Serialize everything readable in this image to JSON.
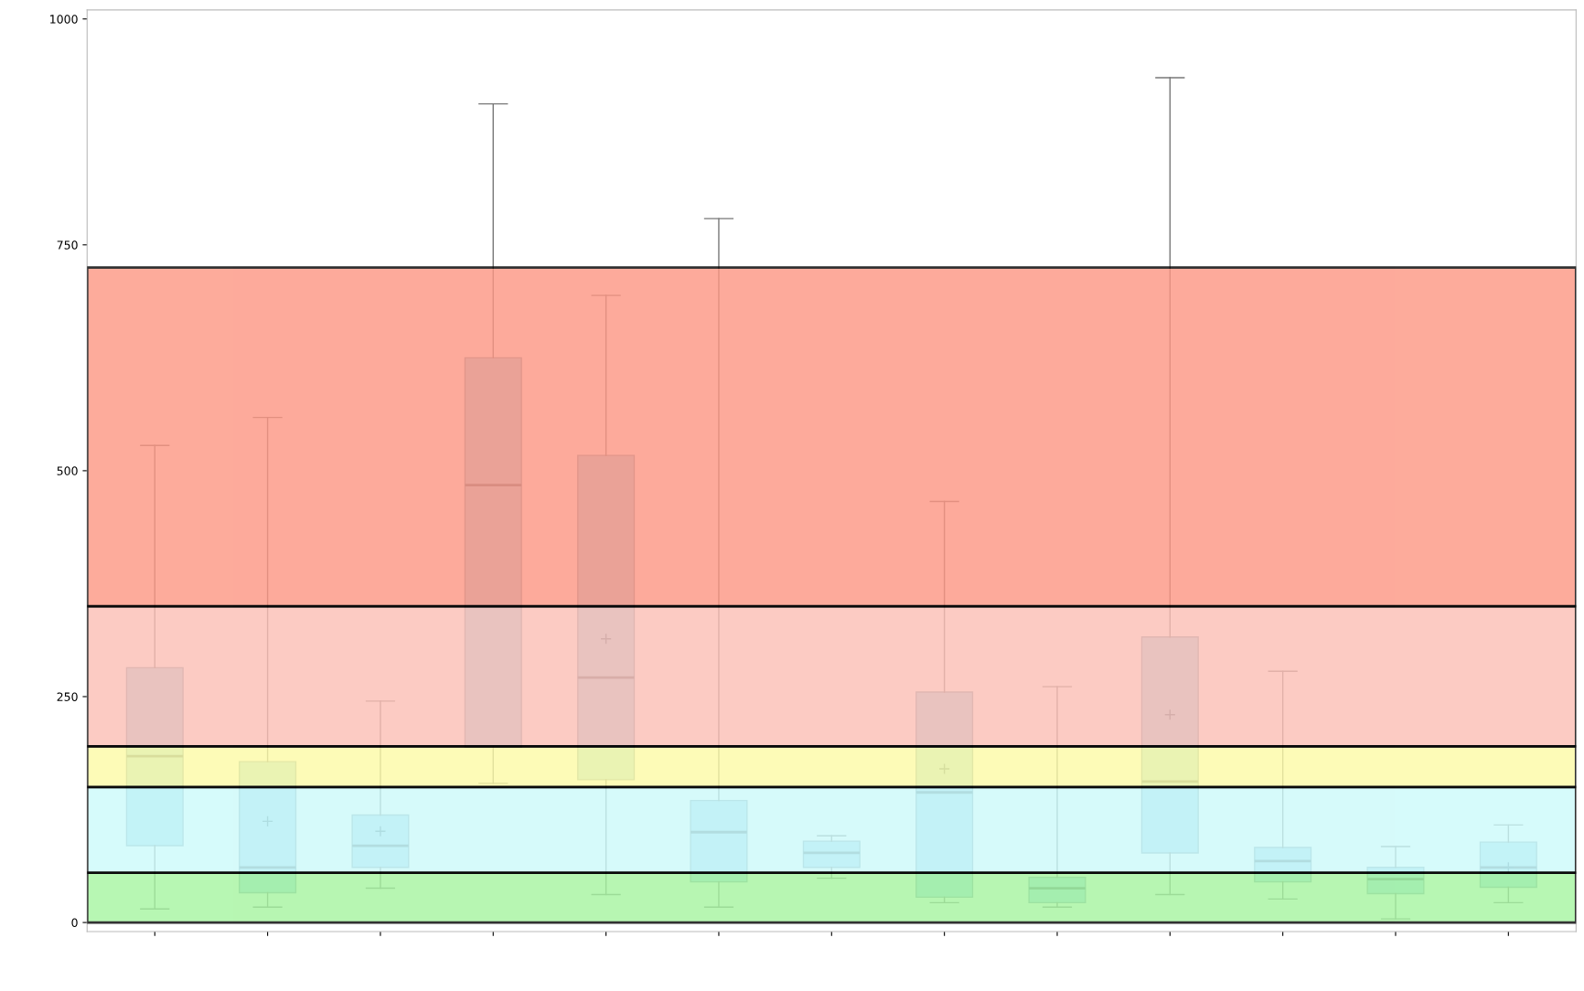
{
  "chart_data": {
    "type": "box",
    "categories": [
      null,
      null,
      null,
      null,
      null,
      null,
      null,
      null,
      null,
      null,
      null,
      null,
      null
    ],
    "boxes": [
      {
        "low": 15,
        "q1": 85,
        "median": 184,
        "q3": 282,
        "high": 528
      },
      {
        "low": 17,
        "q1": 33,
        "median": 61,
        "q3": 178,
        "high": 559,
        "mean": 112
      },
      {
        "low": 38,
        "q1": 61,
        "median": 85,
        "q3": 119,
        "high": 245,
        "mean": 101
      },
      {
        "low": 154,
        "q1": 194,
        "median": 484,
        "q3": 625,
        "high": 906
      },
      {
        "low": 31,
        "q1": 158,
        "median": 271,
        "q3": 517,
        "high": 694,
        "mean": 314
      },
      {
        "low": 17,
        "q1": 45,
        "median": 100,
        "q3": 135,
        "high": 779
      },
      {
        "low": 49,
        "q1": 61,
        "median": 77,
        "q3": 90,
        "high": 96
      },
      {
        "low": 22,
        "q1": 28,
        "median": 144,
        "q3": 255,
        "high": 466,
        "mean": 170
      },
      {
        "low": 17,
        "q1": 22,
        "median": 38,
        "q3": 50,
        "high": 261
      },
      {
        "low": 31,
        "q1": 77,
        "median": 156,
        "q3": 316,
        "high": 935,
        "mean": 230
      },
      {
        "low": 26,
        "q1": 45,
        "median": 68,
        "q3": 83,
        "high": 278
      },
      {
        "low": 4,
        "q1": 32,
        "median": 48,
        "q3": 61,
        "high": 84
      },
      {
        "low": 22,
        "q1": 39,
        "median": 61,
        "q3": 89,
        "high": 108,
        "mean": 61
      }
    ],
    "color": "#9fd6ec",
    "ylim": [
      -10,
      1010
    ],
    "yticks": [
      0,
      250,
      500,
      750,
      1000
    ],
    "grid": false,
    "bands": [
      {
        "axis": "y",
        "from": 0,
        "to": 55,
        "color": "#a6f5a0"
      },
      {
        "axis": "y",
        "from": 55,
        "to": 150,
        "color": "#ccfafa"
      },
      {
        "axis": "y",
        "from": 150,
        "to": 195,
        "color": "#fdfba6"
      },
      {
        "axis": "y",
        "from": 195,
        "to": 350,
        "color": "#fcbfb5"
      },
      {
        "axis": "y",
        "from": 350,
        "to": 725,
        "color": "#fd9683"
      }
    ]
  }
}
